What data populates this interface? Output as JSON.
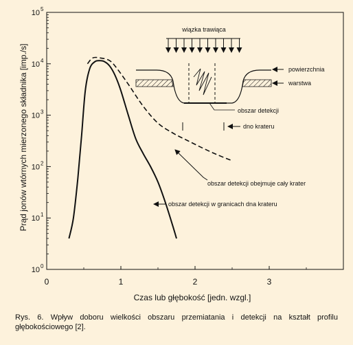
{
  "chart_data": {
    "type": "line",
    "xlabel": "Czas lub głębokość [jedn. wzgl.]",
    "ylabel": "Prąd jonów wtórnych mierzonego składnika [imp./s]",
    "xlim": [
      0,
      4
    ],
    "ylim": [
      1,
      100000
    ],
    "y_scale": "log",
    "x_ticks": [
      {
        "value": 0,
        "label": "0"
      },
      {
        "value": 1,
        "label": "1"
      },
      {
        "value": 2,
        "label": "2"
      },
      {
        "value": 3,
        "label": "3"
      }
    ],
    "y_ticks": [
      {
        "value": 1,
        "base": "10",
        "exp": "0"
      },
      {
        "value": 10,
        "base": "10",
        "exp": "1"
      },
      {
        "value": 100,
        "base": "10",
        "exp": "2"
      },
      {
        "value": 1000,
        "base": "10",
        "exp": "3"
      },
      {
        "value": 10000,
        "base": "10",
        "exp": "4"
      },
      {
        "value": 100000,
        "base": "10",
        "exp": "5"
      }
    ],
    "grid": false,
    "series": [
      {
        "name": "obszar detekcji w granicach dna krateru",
        "style": "solid",
        "points": [
          [
            0.3,
            4
          ],
          [
            0.36,
            10
          ],
          [
            0.42,
            60
          ],
          [
            0.47,
            400
          ],
          [
            0.52,
            3000
          ],
          [
            0.58,
            8000
          ],
          [
            0.65,
            11000
          ],
          [
            0.72,
            11500
          ],
          [
            0.78,
            11000
          ],
          [
            0.85,
            9000
          ],
          [
            0.92,
            6000
          ],
          [
            1.0,
            3000
          ],
          [
            1.1,
            1000
          ],
          [
            1.2,
            350
          ],
          [
            1.3,
            180
          ],
          [
            1.4,
            100
          ],
          [
            1.5,
            50
          ],
          [
            1.6,
            20
          ],
          [
            1.7,
            7
          ],
          [
            1.75,
            4
          ]
        ]
      },
      {
        "name": "obszar detekcji obejmuje cały krater",
        "style": "dashed",
        "points": [
          [
            0.55,
            10000
          ],
          [
            0.62,
            13000
          ],
          [
            0.72,
            13000
          ],
          [
            0.85,
            11500
          ],
          [
            0.95,
            8000
          ],
          [
            1.1,
            4000
          ],
          [
            1.3,
            1500
          ],
          [
            1.5,
            700
          ],
          [
            1.7,
            450
          ],
          [
            1.9,
            320
          ],
          [
            2.1,
            230
          ],
          [
            2.3,
            170
          ],
          [
            2.5,
            130
          ]
        ]
      }
    ],
    "annotations": {
      "beam_label": "wiązka trawiąca",
      "surface": "powierzchnia",
      "layer": "warstwa",
      "detection_area": "obszar detekcji",
      "crater_bottom": "dno krateru",
      "whole_crater": "obszar detekcji obejmuje cały krater",
      "within_bottom": "obszar detekcji w granicach dna krateru"
    }
  },
  "caption": "Rys. 6. Wpływ doboru wielkości obszaru przemiatania i detekcji na kształt profilu głębokościowego [2].",
  "colors": {
    "background": "#fdf2dc",
    "ink": "#111111"
  }
}
